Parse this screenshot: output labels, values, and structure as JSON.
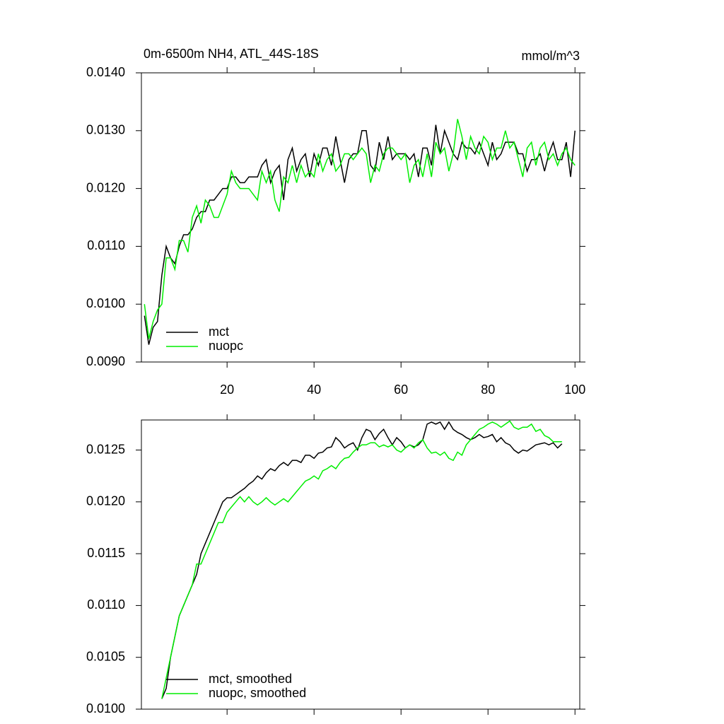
{
  "chart_data": [
    {
      "type": "line",
      "title": "0m-6500m NH4, ATL_44S-18S",
      "units": "mmol/m^3",
      "legend": "lower left",
      "x": [
        1,
        2,
        3,
        4,
        5,
        6,
        7,
        8,
        9,
        10,
        11,
        12,
        13,
        14,
        15,
        16,
        17,
        18,
        19,
        20,
        21,
        22,
        23,
        24,
        25,
        26,
        27,
        28,
        29,
        30,
        31,
        32,
        33,
        34,
        35,
        36,
        37,
        38,
        39,
        40,
        41,
        42,
        43,
        44,
        45,
        46,
        47,
        48,
        49,
        50,
        51,
        52,
        53,
        54,
        55,
        56,
        57,
        58,
        59,
        60,
        61,
        62,
        63,
        64,
        65,
        66,
        67,
        68,
        69,
        70,
        71,
        72,
        73,
        74,
        75,
        76,
        77,
        78,
        79,
        80,
        81,
        82,
        83,
        84,
        85,
        86,
        87,
        88,
        89,
        90,
        91,
        92,
        93,
        94,
        95,
        96,
        97,
        98,
        99,
        100
      ],
      "series": [
        {
          "name": "mct",
          "color": "#000000",
          "values": [
            0.0098,
            0.0093,
            0.0096,
            0.0097,
            0.0105,
            0.011,
            0.0108,
            0.0107,
            0.011,
            0.0112,
            0.0112,
            0.0113,
            0.0115,
            0.0116,
            0.0116,
            0.0118,
            0.0118,
            0.0119,
            0.012,
            0.012,
            0.0122,
            0.0122,
            0.0121,
            0.0121,
            0.0122,
            0.0122,
            0.0122,
            0.0124,
            0.0125,
            0.0121,
            0.0123,
            0.0124,
            0.0118,
            0.0125,
            0.0127,
            0.0123,
            0.0125,
            0.0126,
            0.0122,
            0.0126,
            0.0124,
            0.0127,
            0.0127,
            0.0124,
            0.0129,
            0.0125,
            0.0121,
            0.0125,
            0.0126,
            0.0126,
            0.013,
            0.013,
            0.0124,
            0.0123,
            0.0128,
            0.0125,
            0.0129,
            0.0125,
            0.0126,
            0.0126,
            0.0126,
            0.0125,
            0.0126,
            0.0122,
            0.0127,
            0.0127,
            0.0124,
            0.0131,
            0.0126,
            0.013,
            0.0128,
            0.0126,
            0.0125,
            0.0128,
            0.0127,
            0.0127,
            0.0126,
            0.0128,
            0.0126,
            0.0124,
            0.0128,
            0.0125,
            0.0126,
            0.0128,
            0.0128,
            0.0128,
            0.0126,
            0.0126,
            0.0123,
            0.0125,
            0.0125,
            0.0126,
            0.0123,
            0.0126,
            0.0128,
            0.0125,
            0.0125,
            0.0128,
            0.0122,
            0.013
          ]
        },
        {
          "name": "nuopc",
          "color": "#00ee00",
          "values": [
            0.01,
            0.0094,
            0.0097,
            0.0099,
            0.01,
            0.0108,
            0.0108,
            0.0106,
            0.0111,
            0.0111,
            0.0109,
            0.0115,
            0.0117,
            0.0114,
            0.0118,
            0.0117,
            0.0115,
            0.0115,
            0.0117,
            0.0119,
            0.0123,
            0.0121,
            0.012,
            0.012,
            0.012,
            0.0119,
            0.0118,
            0.0123,
            0.0121,
            0.0123,
            0.0118,
            0.0116,
            0.0122,
            0.0121,
            0.0124,
            0.0121,
            0.0124,
            0.0122,
            0.0123,
            0.0122,
            0.0126,
            0.0123,
            0.0125,
            0.0126,
            0.0123,
            0.0124,
            0.0126,
            0.0126,
            0.0125,
            0.0126,
            0.0127,
            0.0126,
            0.0121,
            0.0124,
            0.0123,
            0.0126,
            0.0127,
            0.0127,
            0.0126,
            0.0125,
            0.0126,
            0.0121,
            0.0124,
            0.0125,
            0.0122,
            0.0126,
            0.0122,
            0.0128,
            0.0126,
            0.0127,
            0.0123,
            0.0126,
            0.0132,
            0.0129,
            0.0125,
            0.0129,
            0.0127,
            0.0126,
            0.0129,
            0.0128,
            0.0125,
            0.0127,
            0.0127,
            0.013,
            0.0127,
            0.0128,
            0.0125,
            0.0122,
            0.0127,
            0.0128,
            0.0124,
            0.0127,
            0.0128,
            0.0125,
            0.0126,
            0.0124,
            0.0126,
            0.0127,
            0.0125,
            0.0124
          ]
        }
      ],
      "xlim": [
        0.3,
        101.1
      ],
      "xticks": [
        20,
        40,
        60,
        80,
        100
      ],
      "ylim": [
        0.009,
        0.014
      ],
      "yticks": [
        {
          "value": 0.009,
          "label": "0.0090"
        },
        {
          "value": 0.01,
          "label": "0.0100"
        },
        {
          "value": 0.011,
          "label": "0.0110"
        },
        {
          "value": 0.012,
          "label": "0.0120"
        },
        {
          "value": 0.013,
          "label": "0.0130"
        },
        {
          "value": 0.014,
          "label": "0.0140"
        }
      ]
    },
    {
      "type": "line",
      "legend": "lower left",
      "xtick_labels": false,
      "x": [
        5,
        6,
        7,
        8,
        9,
        10,
        11,
        12,
        13,
        14,
        15,
        16,
        17,
        18,
        19,
        20,
        21,
        22,
        23,
        24,
        25,
        26,
        27,
        28,
        29,
        30,
        31,
        32,
        33,
        34,
        35,
        36,
        37,
        38,
        39,
        40,
        41,
        42,
        43,
        44,
        45,
        46,
        47,
        48,
        49,
        50,
        51,
        52,
        53,
        54,
        55,
        56,
        57,
        58,
        59,
        60,
        61,
        62,
        63,
        64,
        65,
        66,
        67,
        68,
        69,
        70,
        71,
        72,
        73,
        74,
        75,
        76,
        77,
        78,
        79,
        80,
        81,
        82,
        83,
        84,
        85,
        86,
        87,
        88,
        89,
        90,
        91,
        92,
        93,
        94,
        95,
        96,
        97
      ],
      "series": [
        {
          "name": "mct, smoothed",
          "color": "#000000",
          "values": [
            0.0101,
            0.0102,
            0.0105,
            0.0107,
            0.0109,
            0.011,
            0.0111,
            0.0112,
            0.0113,
            0.0115,
            0.0116,
            0.0117,
            0.0118,
            0.0119,
            0.012,
            0.01204,
            0.01204,
            0.01207,
            0.0121,
            0.01213,
            0.01217,
            0.0122,
            0.01225,
            0.01222,
            0.01228,
            0.01232,
            0.0123,
            0.01235,
            0.01238,
            0.01235,
            0.0124,
            0.0124,
            0.01238,
            0.01245,
            0.01245,
            0.01242,
            0.01247,
            0.01248,
            0.01252,
            0.01253,
            0.01262,
            0.01258,
            0.01252,
            0.01255,
            0.01257,
            0.0125,
            0.01262,
            0.0127,
            0.01268,
            0.0126,
            0.01266,
            0.0127,
            0.01262,
            0.01255,
            0.01262,
            0.01258,
            0.01252,
            0.01255,
            0.01253,
            0.01255,
            0.0126,
            0.01275,
            0.01277,
            0.01275,
            0.01277,
            0.0127,
            0.01277,
            0.0127,
            0.01267,
            0.01265,
            0.01262,
            0.0126,
            0.01262,
            0.01265,
            0.01262,
            0.01263,
            0.01265,
            0.01258,
            0.01262,
            0.01257,
            0.01255,
            0.0125,
            0.01247,
            0.0125,
            0.01249,
            0.01252,
            0.01255,
            0.01256,
            0.01257,
            0.01255,
            0.01257,
            0.01252,
            0.01256
          ]
        },
        {
          "name": "nuopc, smoothed",
          "color": "#00ee00",
          "values": [
            0.0101,
            0.0103,
            0.0105,
            0.0107,
            0.0109,
            0.011,
            0.0111,
            0.0112,
            0.0114,
            0.0114,
            0.0115,
            0.0116,
            0.0117,
            0.0118,
            0.0118,
            0.0119,
            0.01195,
            0.012,
            0.01205,
            0.012,
            0.01205,
            0.012,
            0.01197,
            0.012,
            0.01204,
            0.012,
            0.01197,
            0.012,
            0.01203,
            0.012,
            0.01205,
            0.0121,
            0.01215,
            0.0122,
            0.01222,
            0.01225,
            0.01222,
            0.0123,
            0.01232,
            0.01235,
            0.01232,
            0.01238,
            0.01242,
            0.01243,
            0.01248,
            0.01252,
            0.01255,
            0.01255,
            0.01257,
            0.01257,
            0.01253,
            0.01255,
            0.01253,
            0.01255,
            0.0125,
            0.01248,
            0.01252,
            0.01255,
            0.01252,
            0.01257,
            0.0126,
            0.01252,
            0.01247,
            0.01248,
            0.01245,
            0.01248,
            0.01242,
            0.0124,
            0.01248,
            0.01245,
            0.01255,
            0.0126,
            0.01265,
            0.0127,
            0.01272,
            0.01275,
            0.01277,
            0.01275,
            0.01272,
            0.01275,
            0.01278,
            0.01272,
            0.0127,
            0.01272,
            0.01272,
            0.01275,
            0.01268,
            0.0127,
            0.01264,
            0.01262,
            0.01258,
            0.01258,
            0.01258
          ]
        }
      ],
      "xlim": [
        0.3,
        101.1
      ],
      "xticks": [
        20,
        40,
        60,
        80,
        100
      ],
      "ylim": [
        0.01,
        0.01279
      ],
      "yticks": [
        {
          "value": 0.01,
          "label": "0.0100"
        },
        0.0105,
        {
          "value": 0.011,
          "label": "0.0110"
        },
        0.0115,
        {
          "value": 0.012,
          "label": "0.0120"
        },
        0.0125
      ]
    }
  ]
}
